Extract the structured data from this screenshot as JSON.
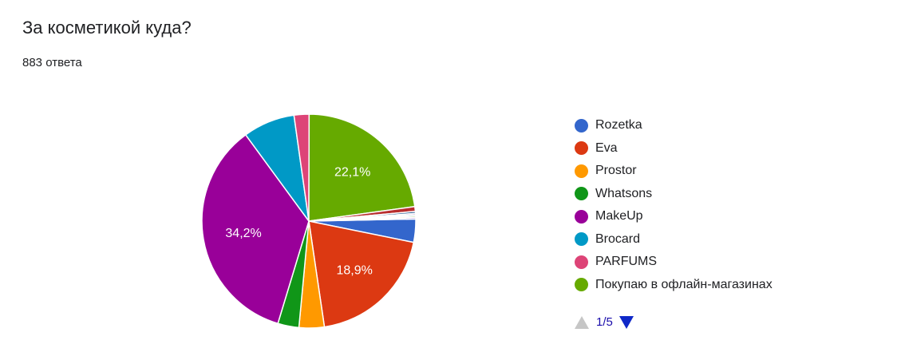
{
  "question": {
    "title": "За косметикой куда?",
    "responses": "883 ответа"
  },
  "chart_data": {
    "type": "pie",
    "title": "",
    "slices": [
      {
        "name": "Rozetka",
        "value": 3.4,
        "label": "",
        "color": "#3366cc"
      },
      {
        "name": "Eva",
        "value": 18.9,
        "label": "18,9%",
        "color": "#dc3912"
      },
      {
        "name": "Prostor",
        "value": 3.7,
        "label": "",
        "color": "#ff9900"
      },
      {
        "name": "Whatsons",
        "value": 3.1,
        "label": "",
        "color": "#109618"
      },
      {
        "name": "MakeUp",
        "value": 34.2,
        "label": "34,2%",
        "color": "#990099"
      },
      {
        "name": "Brocard",
        "value": 7.6,
        "label": "",
        "color": "#0099c6"
      },
      {
        "name": "PARFUMS",
        "value": 2.2,
        "label": "",
        "color": "#dd4477"
      },
      {
        "name": "Покупаю в офлайн-магазинах",
        "value": 22.1,
        "label": "22,1%",
        "color": "#66aa00"
      },
      {
        "name": "",
        "value": 0.7,
        "label": "",
        "color": "#b82e2e"
      },
      {
        "name": "",
        "value": 0.3,
        "label": "",
        "color": "#316395"
      },
      {
        "name": "",
        "value": 0.2,
        "label": "",
        "color": "#994499"
      },
      {
        "name": "",
        "value": 0.2,
        "label": "",
        "color": "#22aa99"
      },
      {
        "name": "",
        "value": 0.2,
        "label": "",
        "color": "#aaaa11"
      },
      {
        "name": "",
        "value": 0.2,
        "label": "",
        "color": "#6633cc"
      }
    ],
    "legend_position": "right"
  },
  "legend": {
    "items": [
      {
        "label": "Rozetka",
        "color": "#3366cc"
      },
      {
        "label": "Eva",
        "color": "#dc3912"
      },
      {
        "label": "Prostor",
        "color": "#ff9900"
      },
      {
        "label": "Whatsons",
        "color": "#109618"
      },
      {
        "label": "MakeUp",
        "color": "#990099"
      },
      {
        "label": "Brocard",
        "color": "#0099c6"
      },
      {
        "label": "PARFUMS",
        "color": "#dd4477"
      },
      {
        "label": "Покупаю в офлайн-магазинах",
        "color": "#66aa00"
      }
    ]
  },
  "pager": {
    "text": "1/5",
    "prev_icon": "triangle-up-icon",
    "next_icon": "triangle-down-icon"
  }
}
